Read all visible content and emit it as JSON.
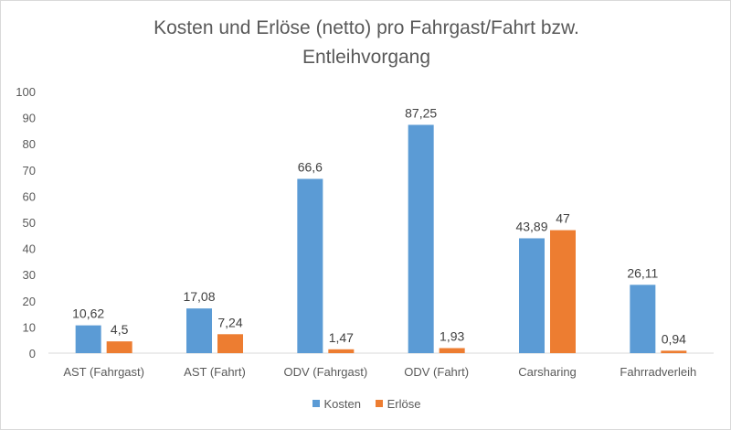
{
  "chart_data": {
    "type": "bar",
    "title_line1": "Kosten und Erlöse (netto) pro Fahrgast/Fahrt bzw.",
    "title_line2": "Entleihvorgang",
    "categories": [
      "AST (Fahrgast)",
      "AST (Fahrt)",
      "ODV (Fahrgast)",
      "ODV (Fahrt)",
      "Carsharing",
      "Fahrradverleih"
    ],
    "series": [
      {
        "name": "Kosten",
        "color": "#5b9bd5",
        "values": [
          10.62,
          17.08,
          66.6,
          87.25,
          43.89,
          26.11
        ],
        "labels": [
          "10,62",
          "17,08",
          "66,6",
          "87,25",
          "43,89",
          "26,11"
        ]
      },
      {
        "name": "Erlöse",
        "color": "#ed7d31",
        "values": [
          4.5,
          7.24,
          1.47,
          1.93,
          47,
          0.94
        ],
        "labels": [
          "4,5",
          "7,24",
          "1,47",
          "1,93",
          "47",
          "0,94"
        ]
      }
    ],
    "ylim": [
      0,
      100
    ],
    "yticks": [
      0,
      10,
      20,
      30,
      40,
      50,
      60,
      70,
      80,
      90,
      100
    ],
    "grid": false,
    "legend_position": "bottom"
  }
}
